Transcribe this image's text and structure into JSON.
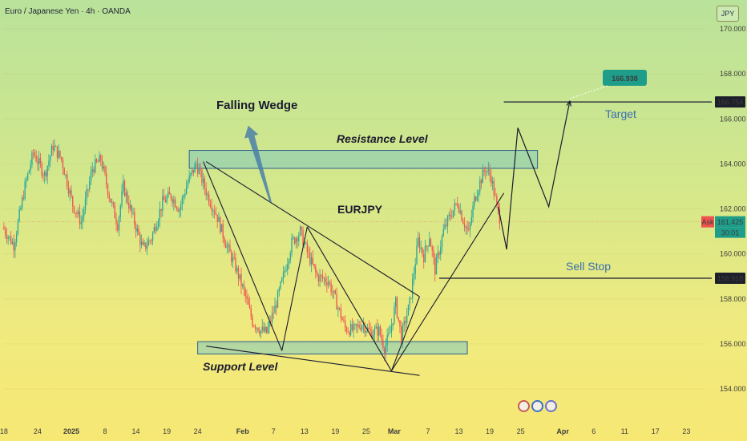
{
  "header": {
    "title": "Euro / Japanese Yen · 4h · OANDA",
    "currency": "JPY"
  },
  "colors": {
    "up": "#26a69a",
    "down": "#ef5350",
    "line": "#1a1a2e",
    "zone_fill": "#7fc8c0",
    "zone_stroke": "#2c5f8a",
    "arrow": "#4a7fa8",
    "label_blue": "#3a6fb0",
    "price_tag_dark": "#1d1f2a",
    "price_tag_green": "#1e9e8a"
  },
  "chart_data": {
    "type": "candlestick",
    "symbol": "EURJPY",
    "timeframe": "4h",
    "y_axis": {
      "ylim": [
        153.2,
        171.0
      ],
      "ticks": [
        "170.000",
        "168.000",
        "166.000",
        "164.000",
        "162.000",
        "160.000",
        "158.000",
        "156.000",
        "154.000"
      ],
      "tick_values": [
        170,
        168,
        166,
        164,
        162,
        160,
        158,
        156,
        154
      ]
    },
    "x_axis": {
      "ticks": [
        "18",
        "24",
        "2025",
        "8",
        "14",
        "19",
        "24",
        "Feb",
        "7",
        "13",
        "19",
        "25",
        "Mar",
        "7",
        "13",
        "19",
        "25",
        "Apr",
        "6",
        "11",
        "17",
        "23"
      ],
      "tick_bars": [
        0,
        24,
        48,
        72,
        94,
        116,
        138,
        170,
        192,
        214,
        236,
        258,
        278,
        302,
        324,
        346,
        368,
        398,
        420,
        442,
        464,
        486
      ]
    },
    "bars_total": 500,
    "candle_bars": 354,
    "price_path": [
      [
        0,
        161.2
      ],
      [
        8,
        160.4
      ],
      [
        16,
        163.0
      ],
      [
        22,
        164.5
      ],
      [
        30,
        163.5
      ],
      [
        36,
        164.8
      ],
      [
        42,
        164.2
      ],
      [
        50,
        162.2
      ],
      [
        56,
        161.4
      ],
      [
        64,
        163.8
      ],
      [
        70,
        164.2
      ],
      [
        76,
        162.6
      ],
      [
        82,
        161.3
      ],
      [
        86,
        163.0
      ],
      [
        92,
        161.8
      ],
      [
        100,
        160.2
      ],
      [
        106,
        160.7
      ],
      [
        114,
        162.3
      ],
      [
        120,
        162.6
      ],
      [
        126,
        162.0
      ],
      [
        132,
        163.2
      ],
      [
        138,
        164.0
      ],
      [
        146,
        162.6
      ],
      [
        152,
        161.8
      ],
      [
        160,
        160.3
      ],
      [
        166,
        159.4
      ],
      [
        172,
        158.3
      ],
      [
        178,
        157.0
      ],
      [
        184,
        156.6
      ],
      [
        188,
        156.5
      ],
      [
        194,
        157.6
      ],
      [
        200,
        159.0
      ],
      [
        206,
        160.5
      ],
      [
        212,
        161.0
      ],
      [
        218,
        159.9
      ],
      [
        224,
        159.0
      ],
      [
        232,
        158.8
      ],
      [
        238,
        157.8
      ],
      [
        244,
        156.7
      ],
      [
        250,
        156.6
      ],
      [
        256,
        156.9
      ],
      [
        262,
        156.5
      ],
      [
        268,
        156.6
      ],
      [
        272,
        155.8
      ],
      [
        276,
        156.5
      ],
      [
        280,
        157.8
      ],
      [
        284,
        156.3
      ],
      [
        290,
        157.8
      ],
      [
        296,
        160.6
      ],
      [
        300,
        159.9
      ],
      [
        304,
        160.8
      ],
      [
        308,
        159.3
      ],
      [
        314,
        161.0
      ],
      [
        318,
        161.6
      ],
      [
        324,
        162.3
      ],
      [
        328,
        161.5
      ],
      [
        332,
        160.9
      ],
      [
        336,
        162.4
      ],
      [
        340,
        163.2
      ],
      [
        344,
        163.8
      ],
      [
        348,
        163.4
      ],
      [
        352,
        162.1
      ],
      [
        354,
        161.6
      ]
    ],
    "resistance_zone": {
      "bars": [
        132,
        380
      ],
      "price": [
        163.8,
        164.6
      ]
    },
    "support_zone": {
      "bars": [
        138,
        330
      ],
      "price": [
        155.55,
        156.1
      ]
    },
    "trend_lines": [
      {
        "from": [
          144,
          164.1
        ],
        "to": [
          296,
          158.1
        ]
      },
      {
        "from": [
          144,
          155.9
        ],
        "to": [
          296,
          154.6
        ]
      },
      {
        "from": [
          142,
          164.1
        ],
        "to": [
          198,
          155.7
        ]
      },
      {
        "from": [
          198,
          155.7
        ],
        "to": [
          216,
          161.2
        ]
      },
      {
        "from": [
          216,
          161.2
        ],
        "to": [
          276,
          154.8
        ]
      },
      {
        "from": [
          276,
          154.8
        ],
        "to": [
          296,
          158.1
        ]
      },
      {
        "from": [
          276,
          154.8
        ],
        "to": [
          356,
          162.7
        ]
      }
    ],
    "projection": [
      [
        352,
        162.1
      ],
      [
        358,
        160.2
      ],
      [
        366,
        165.6
      ],
      [
        388,
        162.1
      ],
      [
        403,
        166.8
      ]
    ],
    "arrow": {
      "from": [
        190,
        162.3
      ],
      "to": [
        174,
        165.7
      ]
    },
    "levels": [
      {
        "price": 166.754,
        "label": "166.754",
        "from_bar": 356
      },
      {
        "price": 158.918,
        "label": "158.918",
        "from_bar": 310
      }
    ],
    "current_price": 161.425,
    "annotations": {
      "pattern": "Falling Wedge",
      "resistance": "Resistance Level",
      "support": "Support Level",
      "symbol_label": "EURJPY",
      "target": "Target",
      "sell_stop": "Sell Stop",
      "target_price": "166.938"
    },
    "price_tags": {
      "ask_label": "Ask",
      "ask_price": "161.425",
      "countdown": "30:01"
    }
  }
}
